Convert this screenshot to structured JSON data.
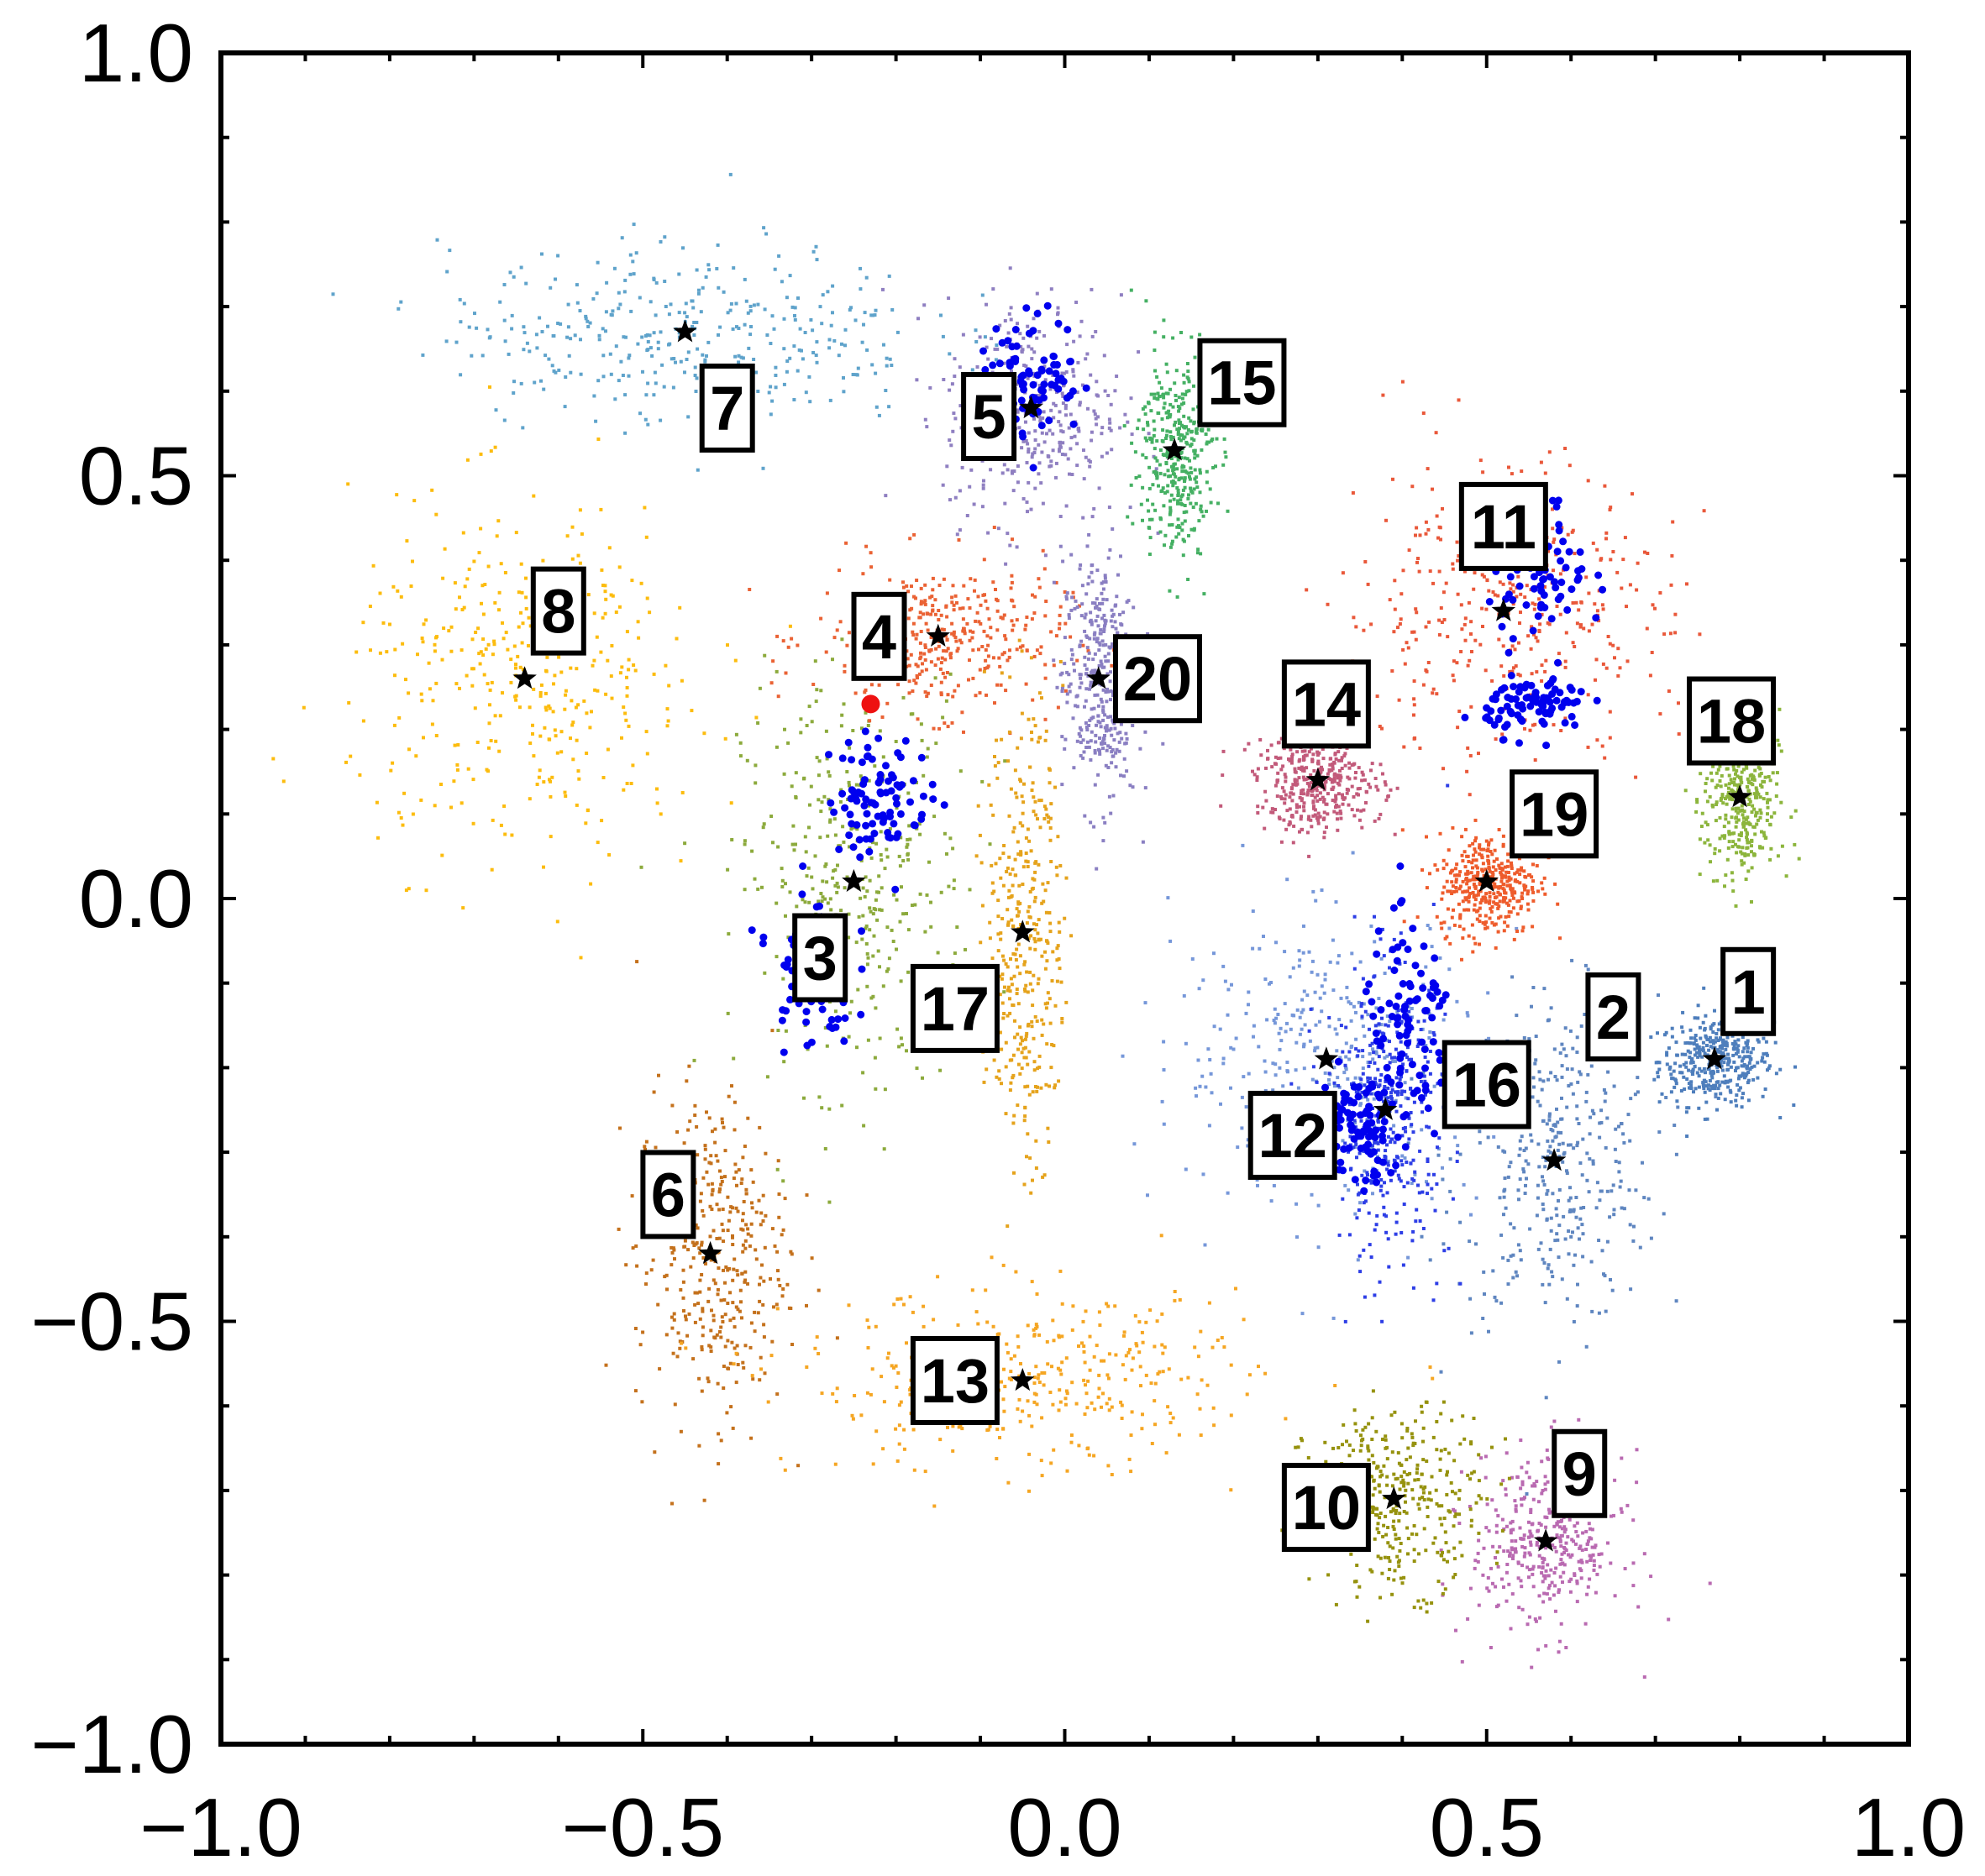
{
  "chart_data": {
    "type": "scatter",
    "title": "",
    "xlabel": "",
    "ylabel": "",
    "xlim": [
      -1.0,
      1.0
    ],
    "ylim": [
      -1.0,
      1.0
    ],
    "grid": false,
    "x_ticks": [
      "-1.0",
      "-0.5",
      "0.0",
      "0.5",
      "1.0"
    ],
    "y_ticks": [
      "1.0",
      "0.5",
      "0.0",
      "-0.5",
      "-1.0"
    ],
    "clusters": [
      {
        "label": "1",
        "color": "#4e7ebc",
        "center": [
          0.77,
          -0.19
        ],
        "spread": [
          0.045,
          0.035
        ],
        "label_pos": [
          0.81,
          -0.11
        ]
      },
      {
        "label": "2",
        "color": "#5f86c0",
        "center": [
          0.58,
          -0.31
        ],
        "spread": [
          0.08,
          0.13
        ],
        "label_pos": [
          0.65,
          -0.14
        ]
      },
      {
        "label": "3",
        "color": "#8caa3c",
        "center": [
          -0.25,
          0.02
        ],
        "spread": [
          0.09,
          0.16
        ],
        "label_pos": [
          -0.29,
          -0.07
        ]
      },
      {
        "label": "4",
        "color": "#ea6234",
        "center": [
          -0.15,
          0.31
        ],
        "spread": [
          0.1,
          0.06
        ],
        "label_pos": [
          -0.22,
          0.31
        ]
      },
      {
        "label": "5",
        "color": "#8f7fc1",
        "center": [
          -0.04,
          0.58
        ],
        "spread": [
          0.07,
          0.09
        ],
        "label_pos": [
          -0.09,
          0.57
        ]
      },
      {
        "label": "6",
        "color": "#c4711c",
        "center": [
          -0.42,
          -0.42
        ],
        "spread": [
          0.06,
          0.13
        ],
        "label_pos": [
          -0.47,
          -0.35
        ]
      },
      {
        "label": "7",
        "color": "#5fa3cb",
        "center": [
          -0.45,
          0.67
        ],
        "spread": [
          0.19,
          0.07
        ],
        "label_pos": [
          -0.4,
          0.58
        ]
      },
      {
        "label": "8",
        "color": "#fcbc0e",
        "center": [
          -0.64,
          0.26
        ],
        "spread": [
          0.14,
          0.14
        ],
        "label_pos": [
          -0.6,
          0.34
        ]
      },
      {
        "label": "9",
        "color": "#b96ab1",
        "center": [
          0.57,
          -0.76
        ],
        "spread": [
          0.06,
          0.07
        ],
        "label_pos": [
          0.61,
          -0.68
        ]
      },
      {
        "label": "10",
        "color": "#96920e",
        "center": [
          0.39,
          -0.71
        ],
        "spread": [
          0.07,
          0.07
        ],
        "label_pos": [
          0.31,
          -0.72
        ]
      },
      {
        "label": "11",
        "color": "#e9583a",
        "center": [
          0.52,
          0.34
        ],
        "spread": [
          0.13,
          0.12
        ],
        "label_pos": [
          0.52,
          0.44
        ]
      },
      {
        "label": "12",
        "color": "#7697d9",
        "center": [
          0.31,
          -0.19
        ],
        "spread": [
          0.12,
          0.12
        ],
        "label_pos": [
          0.27,
          -0.28
        ]
      },
      {
        "label": "13",
        "color": "#f5a623",
        "center": [
          -0.05,
          -0.57
        ],
        "spread": [
          0.18,
          0.07
        ],
        "label_pos": [
          -0.13,
          -0.57
        ]
      },
      {
        "label": "14",
        "color": "#c25a7a",
        "center": [
          0.3,
          0.14
        ],
        "spread": [
          0.05,
          0.04
        ],
        "label_pos": [
          0.31,
          0.23
        ]
      },
      {
        "label": "15",
        "color": "#45b063",
        "center": [
          0.13,
          0.53
        ],
        "spread": [
          0.03,
          0.08
        ],
        "label_pos": [
          0.21,
          0.61
        ]
      },
      {
        "label": "16",
        "color": "#2d3ee6",
        "center": [
          0.38,
          -0.25
        ],
        "spread": [
          0.05,
          0.12
        ],
        "label_pos": [
          0.5,
          -0.22
        ]
      },
      {
        "label": "17",
        "color": "#e5a31c",
        "center": [
          -0.05,
          -0.04
        ],
        "spread": [
          0.03,
          0.18
        ],
        "label_pos": [
          -0.13,
          -0.13
        ]
      },
      {
        "label": "18",
        "color": "#8cb53c",
        "center": [
          0.8,
          0.12
        ],
        "spread": [
          0.03,
          0.07
        ],
        "label_pos": [
          0.79,
          0.21
        ]
      },
      {
        "label": "19",
        "color": "#ee5c2c",
        "center": [
          0.5,
          0.02
        ],
        "spread": [
          0.04,
          0.04
        ],
        "label_pos": [
          0.58,
          0.1
        ]
      },
      {
        "label": "20",
        "color": "#8a7fc2",
        "center": [
          0.04,
          0.26
        ],
        "spread": [
          0.03,
          0.1
        ],
        "label_pos": [
          0.11,
          0.26
        ]
      }
    ],
    "highlight_color": "#0000ee",
    "highlight_regions": [
      {
        "center": [
          -0.04,
          0.62
        ],
        "spread": [
          0.05,
          0.06
        ]
      },
      {
        "center": [
          -0.22,
          0.12
        ],
        "spread": [
          0.05,
          0.06
        ]
      },
      {
        "center": [
          -0.3,
          -0.08
        ],
        "spread": [
          0.04,
          0.08
        ]
      },
      {
        "center": [
          0.56,
          0.39
        ],
        "spread": [
          0.05,
          0.07
        ]
      },
      {
        "center": [
          0.56,
          0.23
        ],
        "spread": [
          0.05,
          0.03
        ]
      },
      {
        "center": [
          0.41,
          -0.16
        ],
        "spread": [
          0.05,
          0.1
        ]
      },
      {
        "center": [
          0.35,
          -0.27
        ],
        "spread": [
          0.04,
          0.06
        ]
      }
    ],
    "marker": {
      "x": -0.23,
      "y": 0.23,
      "color": "#ee1111"
    }
  }
}
